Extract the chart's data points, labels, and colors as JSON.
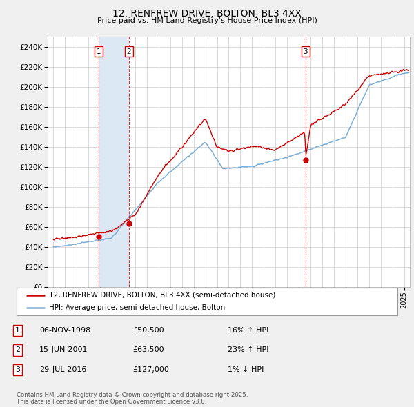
{
  "title": "12, RENFREW DRIVE, BOLTON, BL3 4XX",
  "subtitle": "Price paid vs. HM Land Registry's House Price Index (HPI)",
  "legend_line1": "12, RENFREW DRIVE, BOLTON, BL3 4XX (semi-detached house)",
  "legend_line2": "HPI: Average price, semi-detached house, Bolton",
  "footer": "Contains HM Land Registry data © Crown copyright and database right 2025.\nThis data is licensed under the Open Government Licence v3.0.",
  "transactions": [
    {
      "num": 1,
      "date": "06-NOV-1998",
      "price": 50500,
      "hpi_pct": "16% ↑ HPI",
      "x": 1998.85
    },
    {
      "num": 2,
      "date": "15-JUN-2001",
      "price": 63500,
      "hpi_pct": "23% ↑ HPI",
      "x": 2001.45
    },
    {
      "num": 3,
      "date": "29-JUL-2016",
      "price": 127000,
      "hpi_pct": "1% ↓ HPI",
      "x": 2016.57
    }
  ],
  "ylim": [
    0,
    250000
  ],
  "yticks": [
    0,
    20000,
    40000,
    60000,
    80000,
    100000,
    120000,
    140000,
    160000,
    180000,
    200000,
    220000,
    240000
  ],
  "xlim_start": 1994.5,
  "xlim_end": 2025.5,
  "background_color": "#f0f0f0",
  "plot_bg_color": "#ffffff",
  "red_color": "#cc0000",
  "blue_color": "#7aaed6",
  "shade_color": "#dce9f5"
}
